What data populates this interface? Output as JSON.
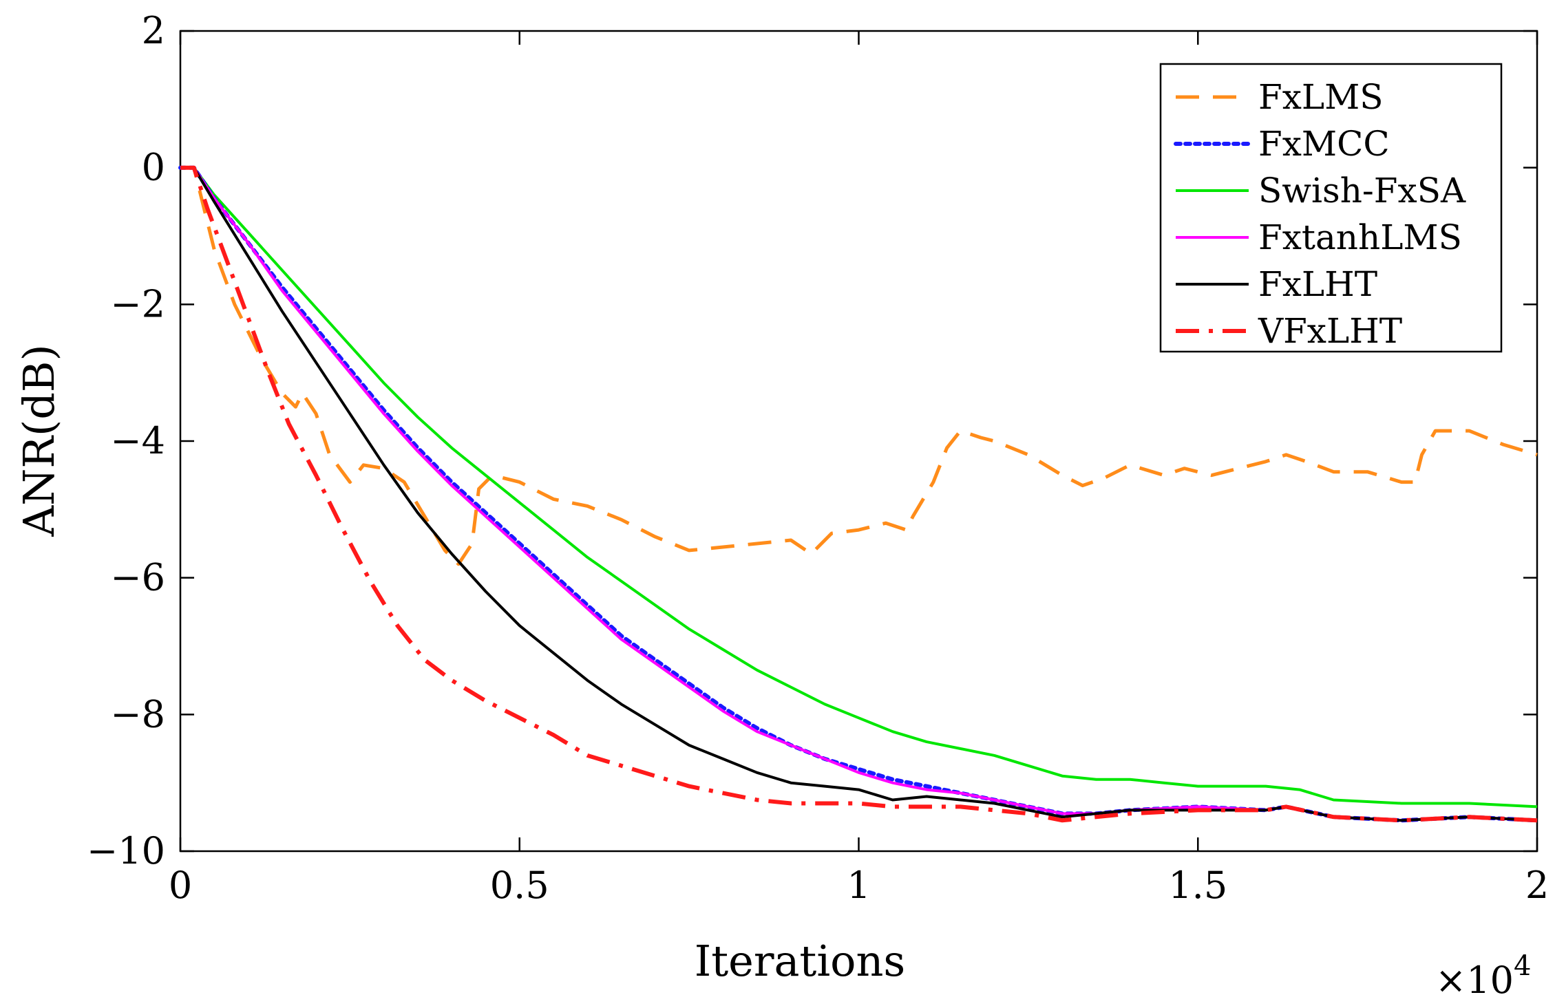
{
  "chart_data": {
    "type": "line",
    "title": "",
    "xlabel": "Iterations",
    "ylabel": "ANR(dB)",
    "x_multiplier_label": "×10",
    "x_multiplier_exp": "4",
    "xlim": [
      0,
      2
    ],
    "ylim": [
      -10,
      2
    ],
    "xticks": [
      0,
      0.5,
      1,
      1.5,
      2
    ],
    "xtick_labels": [
      "0",
      "0.5",
      "1",
      "1.5",
      "2"
    ],
    "yticks": [
      2,
      0,
      -2,
      -4,
      -6,
      -8,
      -10
    ],
    "ytick_labels": [
      "2",
      "0",
      "−2",
      "−4",
      "−6",
      "−8",
      "−10"
    ],
    "legend_position": "top-right",
    "grid": false,
    "series": [
      {
        "name": "FxLMS",
        "color": "#ff8c1a",
        "style": "dashed",
        "points": [
          [
            0,
            0
          ],
          [
            0.02,
            0
          ],
          [
            0.05,
            -1.2
          ],
          [
            0.08,
            -2
          ],
          [
            0.12,
            -2.8
          ],
          [
            0.15,
            -3.3
          ],
          [
            0.17,
            -3.5
          ],
          [
            0.18,
            -3.3
          ],
          [
            0.2,
            -3.6
          ],
          [
            0.22,
            -4.2
          ],
          [
            0.25,
            -4.6
          ],
          [
            0.27,
            -4.35
          ],
          [
            0.3,
            -4.4
          ],
          [
            0.33,
            -4.6
          ],
          [
            0.36,
            -5.1
          ],
          [
            0.39,
            -5.6
          ],
          [
            0.41,
            -5.8
          ],
          [
            0.43,
            -5.5
          ],
          [
            0.44,
            -4.7
          ],
          [
            0.46,
            -4.5
          ],
          [
            0.5,
            -4.6
          ],
          [
            0.55,
            -4.85
          ],
          [
            0.6,
            -4.95
          ],
          [
            0.65,
            -5.15
          ],
          [
            0.7,
            -5.4
          ],
          [
            0.75,
            -5.6
          ],
          [
            0.8,
            -5.55
          ],
          [
            0.85,
            -5.5
          ],
          [
            0.9,
            -5.45
          ],
          [
            0.93,
            -5.65
          ],
          [
            0.96,
            -5.35
          ],
          [
            1.0,
            -5.3
          ],
          [
            1.04,
            -5.2
          ],
          [
            1.07,
            -5.3
          ],
          [
            1.08,
            -5.1
          ],
          [
            1.11,
            -4.6
          ],
          [
            1.13,
            -4.1
          ],
          [
            1.15,
            -3.85
          ],
          [
            1.18,
            -3.95
          ],
          [
            1.2,
            -4.0
          ],
          [
            1.25,
            -4.2
          ],
          [
            1.3,
            -4.5
          ],
          [
            1.33,
            -4.65
          ],
          [
            1.36,
            -4.55
          ],
          [
            1.4,
            -4.35
          ],
          [
            1.45,
            -4.5
          ],
          [
            1.48,
            -4.4
          ],
          [
            1.52,
            -4.5
          ],
          [
            1.56,
            -4.4
          ],
          [
            1.6,
            -4.3
          ],
          [
            1.63,
            -4.2
          ],
          [
            1.66,
            -4.3
          ],
          [
            1.7,
            -4.45
          ],
          [
            1.75,
            -4.45
          ],
          [
            1.8,
            -4.6
          ],
          [
            1.82,
            -4.6
          ],
          [
            1.83,
            -4.2
          ],
          [
            1.85,
            -3.85
          ],
          [
            1.9,
            -3.85
          ],
          [
            1.95,
            -4.05
          ],
          [
            2.0,
            -4.2
          ]
        ]
      },
      {
        "name": "FxMCC",
        "color": "#1a1aff",
        "style": "dotted",
        "points": [
          [
            0,
            0
          ],
          [
            0.02,
            0
          ],
          [
            0.05,
            -0.45
          ],
          [
            0.1,
            -1.1
          ],
          [
            0.15,
            -1.75
          ],
          [
            0.2,
            -2.35
          ],
          [
            0.25,
            -2.95
          ],
          [
            0.3,
            -3.55
          ],
          [
            0.35,
            -4.1
          ],
          [
            0.4,
            -4.6
          ],
          [
            0.45,
            -5.05
          ],
          [
            0.5,
            -5.5
          ],
          [
            0.55,
            -5.95
          ],
          [
            0.6,
            -6.4
          ],
          [
            0.65,
            -6.85
          ],
          [
            0.7,
            -7.2
          ],
          [
            0.75,
            -7.55
          ],
          [
            0.8,
            -7.9
          ],
          [
            0.85,
            -8.2
          ],
          [
            0.9,
            -8.45
          ],
          [
            0.95,
            -8.65
          ],
          [
            1.0,
            -8.8
          ],
          [
            1.05,
            -8.95
          ],
          [
            1.1,
            -9.05
          ],
          [
            1.15,
            -9.15
          ],
          [
            1.2,
            -9.25
          ],
          [
            1.25,
            -9.35
          ],
          [
            1.3,
            -9.45
          ],
          [
            1.35,
            -9.45
          ],
          [
            1.4,
            -9.4
          ],
          [
            1.5,
            -9.35
          ],
          [
            1.6,
            -9.4
          ],
          [
            1.63,
            -9.35
          ],
          [
            1.7,
            -9.5
          ],
          [
            1.8,
            -9.55
          ],
          [
            1.9,
            -9.5
          ],
          [
            2.0,
            -9.55
          ]
        ]
      },
      {
        "name": "Swish-FxSA",
        "color": "#00e600",
        "style": "solid",
        "points": [
          [
            0,
            0
          ],
          [
            0.02,
            0
          ],
          [
            0.05,
            -0.4
          ],
          [
            0.1,
            -0.95
          ],
          [
            0.15,
            -1.5
          ],
          [
            0.2,
            -2.05
          ],
          [
            0.25,
            -2.6
          ],
          [
            0.3,
            -3.15
          ],
          [
            0.35,
            -3.65
          ],
          [
            0.4,
            -4.1
          ],
          [
            0.45,
            -4.5
          ],
          [
            0.5,
            -4.9
          ],
          [
            0.55,
            -5.3
          ],
          [
            0.6,
            -5.7
          ],
          [
            0.65,
            -6.05
          ],
          [
            0.7,
            -6.4
          ],
          [
            0.75,
            -6.75
          ],
          [
            0.8,
            -7.05
          ],
          [
            0.85,
            -7.35
          ],
          [
            0.9,
            -7.6
          ],
          [
            0.95,
            -7.85
          ],
          [
            1.0,
            -8.05
          ],
          [
            1.05,
            -8.25
          ],
          [
            1.1,
            -8.4
          ],
          [
            1.15,
            -8.5
          ],
          [
            1.2,
            -8.6
          ],
          [
            1.25,
            -8.75
          ],
          [
            1.3,
            -8.9
          ],
          [
            1.35,
            -8.95
          ],
          [
            1.4,
            -8.95
          ],
          [
            1.45,
            -9.0
          ],
          [
            1.5,
            -9.05
          ],
          [
            1.55,
            -9.05
          ],
          [
            1.6,
            -9.05
          ],
          [
            1.65,
            -9.1
          ],
          [
            1.7,
            -9.25
          ],
          [
            1.8,
            -9.3
          ],
          [
            1.9,
            -9.3
          ],
          [
            2.0,
            -9.35
          ]
        ]
      },
      {
        "name": "FxtanhLMS",
        "color": "#ff00ff",
        "style": "solid",
        "points": [
          [
            0,
            0
          ],
          [
            0.02,
            0
          ],
          [
            0.05,
            -0.45
          ],
          [
            0.1,
            -1.1
          ],
          [
            0.15,
            -1.8
          ],
          [
            0.2,
            -2.4
          ],
          [
            0.25,
            -3.0
          ],
          [
            0.3,
            -3.6
          ],
          [
            0.35,
            -4.15
          ],
          [
            0.4,
            -4.65
          ],
          [
            0.45,
            -5.1
          ],
          [
            0.5,
            -5.55
          ],
          [
            0.55,
            -6.0
          ],
          [
            0.6,
            -6.45
          ],
          [
            0.65,
            -6.9
          ],
          [
            0.7,
            -7.25
          ],
          [
            0.75,
            -7.6
          ],
          [
            0.8,
            -7.95
          ],
          [
            0.85,
            -8.25
          ],
          [
            0.9,
            -8.45
          ],
          [
            0.95,
            -8.65
          ],
          [
            1.0,
            -8.85
          ],
          [
            1.05,
            -9.0
          ],
          [
            1.1,
            -9.1
          ],
          [
            1.15,
            -9.15
          ],
          [
            1.2,
            -9.25
          ],
          [
            1.25,
            -9.35
          ],
          [
            1.3,
            -9.45
          ],
          [
            1.35,
            -9.45
          ],
          [
            1.4,
            -9.4
          ],
          [
            1.5,
            -9.35
          ],
          [
            1.6,
            -9.4
          ],
          [
            1.63,
            -9.35
          ],
          [
            1.7,
            -9.5
          ],
          [
            1.8,
            -9.55
          ],
          [
            1.9,
            -9.5
          ],
          [
            2.0,
            -9.55
          ]
        ]
      },
      {
        "name": "FxLHT",
        "color": "#000000",
        "style": "solid",
        "points": [
          [
            0,
            0
          ],
          [
            0.02,
            0
          ],
          [
            0.05,
            -0.5
          ],
          [
            0.1,
            -1.3
          ],
          [
            0.15,
            -2.1
          ],
          [
            0.2,
            -2.85
          ],
          [
            0.25,
            -3.6
          ],
          [
            0.3,
            -4.35
          ],
          [
            0.35,
            -5.05
          ],
          [
            0.4,
            -5.65
          ],
          [
            0.45,
            -6.2
          ],
          [
            0.5,
            -6.7
          ],
          [
            0.55,
            -7.1
          ],
          [
            0.6,
            -7.5
          ],
          [
            0.65,
            -7.85
          ],
          [
            0.7,
            -8.15
          ],
          [
            0.75,
            -8.45
          ],
          [
            0.8,
            -8.65
          ],
          [
            0.85,
            -8.85
          ],
          [
            0.9,
            -9.0
          ],
          [
            0.95,
            -9.05
          ],
          [
            1.0,
            -9.1
          ],
          [
            1.05,
            -9.25
          ],
          [
            1.1,
            -9.2
          ],
          [
            1.15,
            -9.25
          ],
          [
            1.2,
            -9.3
          ],
          [
            1.25,
            -9.4
          ],
          [
            1.3,
            -9.5
          ],
          [
            1.35,
            -9.45
          ],
          [
            1.4,
            -9.4
          ],
          [
            1.5,
            -9.4
          ],
          [
            1.6,
            -9.4
          ],
          [
            1.63,
            -9.35
          ],
          [
            1.7,
            -9.5
          ],
          [
            1.8,
            -9.55
          ],
          [
            1.9,
            -9.5
          ],
          [
            2.0,
            -9.55
          ]
        ]
      },
      {
        "name": "VFxLHT",
        "color": "#ff1a1a",
        "style": "dashdot",
        "points": [
          [
            0,
            0
          ],
          [
            0.02,
            0
          ],
          [
            0.04,
            -0.6
          ],
          [
            0.07,
            -1.4
          ],
          [
            0.1,
            -2.2
          ],
          [
            0.13,
            -3.0
          ],
          [
            0.16,
            -3.75
          ],
          [
            0.2,
            -4.5
          ],
          [
            0.24,
            -5.3
          ],
          [
            0.28,
            -6.05
          ],
          [
            0.32,
            -6.7
          ],
          [
            0.36,
            -7.2
          ],
          [
            0.4,
            -7.5
          ],
          [
            0.45,
            -7.8
          ],
          [
            0.5,
            -8.05
          ],
          [
            0.55,
            -8.3
          ],
          [
            0.6,
            -8.6
          ],
          [
            0.65,
            -8.75
          ],
          [
            0.7,
            -8.9
          ],
          [
            0.75,
            -9.05
          ],
          [
            0.8,
            -9.15
          ],
          [
            0.85,
            -9.25
          ],
          [
            0.9,
            -9.3
          ],
          [
            0.95,
            -9.3
          ],
          [
            1.0,
            -9.3
          ],
          [
            1.05,
            -9.35
          ],
          [
            1.1,
            -9.35
          ],
          [
            1.15,
            -9.35
          ],
          [
            1.2,
            -9.4
          ],
          [
            1.25,
            -9.45
          ],
          [
            1.3,
            -9.55
          ],
          [
            1.35,
            -9.5
          ],
          [
            1.4,
            -9.45
          ],
          [
            1.5,
            -9.4
          ],
          [
            1.6,
            -9.4
          ],
          [
            1.63,
            -9.35
          ],
          [
            1.7,
            -9.5
          ],
          [
            1.8,
            -9.55
          ],
          [
            1.9,
            -9.5
          ],
          [
            2.0,
            -9.55
          ]
        ]
      }
    ]
  }
}
